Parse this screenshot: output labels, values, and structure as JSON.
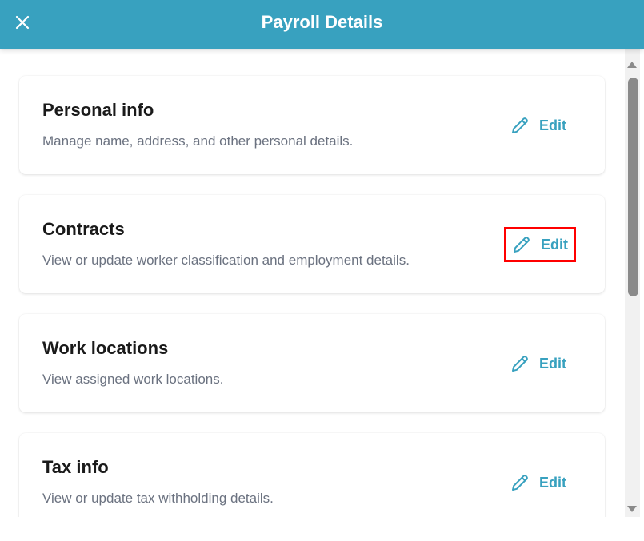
{
  "header": {
    "title": "Payroll Details",
    "close_icon": "close-icon"
  },
  "accent_color": "#38a1bf",
  "sections": [
    {
      "title": "Personal info",
      "description": "Manage name, address, and other personal details.",
      "edit_label": "Edit"
    },
    {
      "title": "Contracts",
      "description": "View or update worker classification and employment details.",
      "edit_label": "Edit",
      "highlighted": true
    },
    {
      "title": "Work locations",
      "description": "View assigned work locations.",
      "edit_label": "Edit"
    },
    {
      "title": "Tax info",
      "description": "View or update tax withholding details.",
      "edit_label": "Edit"
    }
  ]
}
